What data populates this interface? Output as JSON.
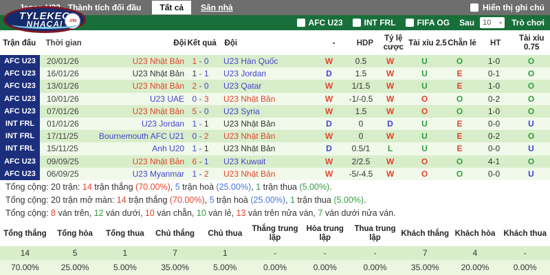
{
  "topbar": {
    "title": "Japan U23 - Thành tích đối đầu",
    "tab_all": "Tất cả",
    "tab_home": "Sân nhà",
    "note_label": "Hiển thị ghi chú"
  },
  "logo": {
    "line1": "TYLEKEO",
    "line2": "NHACAI",
    "vin": ".VIN"
  },
  "filterbar": {
    "checkboxes": [
      "AFC U23",
      "INT FRL",
      "FIFA OG"
    ],
    "after_label": "Sau",
    "select_value": "10",
    "select_chevron": "▾",
    "games_label": "Trò chơi"
  },
  "table": {
    "headers": [
      "Trận đấu",
      "Thời gian",
      "Đội",
      "Kết quả",
      "Đội",
      "-",
      "HDP",
      "Tỷ lệ cược",
      "Tài xỉu 2.5",
      "Chẵn lẻ",
      "HT",
      "Tài xỉu 0.75"
    ],
    "rows": [
      {
        "league": "AFC U23",
        "date": "20/01/26",
        "home": {
          "name": "U23 Nhật Bản",
          "c": "red"
        },
        "score": {
          "h": "1",
          "hc": "red",
          "a": "0",
          "ac": "blue"
        },
        "away": {
          "name": "U23 Hàn Quốc",
          "c": "blue"
        },
        "result": {
          "t": "W",
          "c": "red"
        },
        "hdp": "0.5",
        "odds": {
          "t": "W",
          "c": "red"
        },
        "ou25": {
          "t": "U",
          "c": "green"
        },
        "oddeven": {
          "t": "O",
          "c": "green"
        },
        "ht": "1-0",
        "ou075": {
          "t": "O",
          "c": "green"
        }
      },
      {
        "league": "AFC U23",
        "date": "16/01/26",
        "home": {
          "name": "U23 Nhật Bản",
          "c": "black"
        },
        "score": {
          "h": "1",
          "hc": "black",
          "a": "1",
          "ac": "blue"
        },
        "away": {
          "name": "U23 Jordan",
          "c": "blue"
        },
        "result": {
          "t": "D",
          "c": "blue"
        },
        "hdp": "1.5",
        "odds": {
          "t": "W",
          "c": "red"
        },
        "ou25": {
          "t": "U",
          "c": "green"
        },
        "oddeven": {
          "t": "E",
          "c": "red"
        },
        "ht": "0-1",
        "ou075": {
          "t": "O",
          "c": "green"
        }
      },
      {
        "league": "AFC U23",
        "date": "13/01/26",
        "home": {
          "name": "U23 Nhật Bản",
          "c": "red"
        },
        "score": {
          "h": "2",
          "hc": "red",
          "a": "0",
          "ac": "blue"
        },
        "away": {
          "name": "U23 Qatar",
          "c": "blue"
        },
        "result": {
          "t": "W",
          "c": "red"
        },
        "hdp": "1/1.5",
        "odds": {
          "t": "W",
          "c": "red"
        },
        "ou25": {
          "t": "U",
          "c": "green"
        },
        "oddeven": {
          "t": "E",
          "c": "red"
        },
        "ht": "1-0",
        "ou075": {
          "t": "O",
          "c": "green"
        }
      },
      {
        "league": "AFC U23",
        "date": "10/01/26",
        "home": {
          "name": "U23 UAE",
          "c": "blue"
        },
        "score": {
          "h": "0",
          "hc": "blue",
          "a": "3",
          "ac": "red"
        },
        "away": {
          "name": "U23 Nhật Bản",
          "c": "red"
        },
        "result": {
          "t": "W",
          "c": "red"
        },
        "hdp": "-1/-0.5",
        "odds": {
          "t": "W",
          "c": "red"
        },
        "ou25": {
          "t": "O",
          "c": "red"
        },
        "oddeven": {
          "t": "O",
          "c": "green"
        },
        "ht": "0-2",
        "ou075": {
          "t": "O",
          "c": "green"
        }
      },
      {
        "league": "AFC U23",
        "date": "07/01/26",
        "home": {
          "name": "U23 Nhật Bản",
          "c": "red"
        },
        "score": {
          "h": "5",
          "hc": "red",
          "a": "0",
          "ac": "blue"
        },
        "away": {
          "name": "U23 Syria",
          "c": "blue"
        },
        "result": {
          "t": "W",
          "c": "red"
        },
        "hdp": "1.5",
        "odds": {
          "t": "W",
          "c": "red"
        },
        "ou25": {
          "t": "O",
          "c": "red"
        },
        "oddeven": {
          "t": "O",
          "c": "green"
        },
        "ht": "1-0",
        "ou075": {
          "t": "O",
          "c": "green"
        }
      },
      {
        "league": "INT FRL",
        "date": "01/01/26",
        "home": {
          "name": "U23 Jordan",
          "c": "blue"
        },
        "score": {
          "h": "1",
          "hc": "blue",
          "a": "1",
          "ac": "black"
        },
        "away": {
          "name": "U23 Nhật Bản",
          "c": "black"
        },
        "result": {
          "t": "D",
          "c": "blue"
        },
        "hdp": "0",
        "odds": {
          "t": "D",
          "c": "blue"
        },
        "ou25": {
          "t": "U",
          "c": "green"
        },
        "oddeven": {
          "t": "E",
          "c": "red"
        },
        "ht": "0-0",
        "ou075": {
          "t": "U",
          "c": "blue"
        }
      },
      {
        "league": "INT FRL",
        "date": "17/11/25",
        "home": {
          "name": "Bournemouth AFC U21",
          "c": "blue"
        },
        "score": {
          "h": "0",
          "hc": "blue",
          "a": "2",
          "ac": "red"
        },
        "away": {
          "name": "U23 Nhật Bản",
          "c": "red"
        },
        "result": {
          "t": "W",
          "c": "red"
        },
        "hdp": "0",
        "odds": {
          "t": "W",
          "c": "red"
        },
        "ou25": {
          "t": "U",
          "c": "green"
        },
        "oddeven": {
          "t": "E",
          "c": "red"
        },
        "ht": "0-2",
        "ou075": {
          "t": "O",
          "c": "green"
        }
      },
      {
        "league": "INT FRL",
        "date": "15/11/25",
        "home": {
          "name": "Anh U20",
          "c": "blue"
        },
        "score": {
          "h": "1",
          "hc": "blue",
          "a": "1",
          "ac": "black"
        },
        "away": {
          "name": "U23 Nhật Bản",
          "c": "black"
        },
        "result": {
          "t": "D",
          "c": "blue"
        },
        "hdp": "0.5/1",
        "odds": {
          "t": "L",
          "c": "green"
        },
        "ou25": {
          "t": "U",
          "c": "green"
        },
        "oddeven": {
          "t": "E",
          "c": "red"
        },
        "ht": "0-0",
        "ou075": {
          "t": "U",
          "c": "blue"
        }
      },
      {
        "league": "AFC U23",
        "date": "09/09/25",
        "home": {
          "name": "U23 Nhật Bản",
          "c": "red"
        },
        "score": {
          "h": "6",
          "hc": "red",
          "a": "1",
          "ac": "blue"
        },
        "away": {
          "name": "U23 Kuwait",
          "c": "blue"
        },
        "result": {
          "t": "W",
          "c": "red"
        },
        "hdp": "2/2.5",
        "odds": {
          "t": "W",
          "c": "red"
        },
        "ou25": {
          "t": "O",
          "c": "red"
        },
        "oddeven": {
          "t": "O",
          "c": "green"
        },
        "ht": "4-1",
        "ou075": {
          "t": "O",
          "c": "green"
        }
      },
      {
        "league": "AFC U23",
        "date": "06/09/25",
        "home": {
          "name": "U23 Myanmar",
          "c": "blue"
        },
        "score": {
          "h": "1",
          "hc": "blue",
          "a": "2",
          "ac": "red"
        },
        "away": {
          "name": "U23 Nhật Bản",
          "c": "red"
        },
        "result": {
          "t": "W",
          "c": "red"
        },
        "hdp": "-5/-4.5",
        "odds": {
          "t": "W",
          "c": "red"
        },
        "ou25": {
          "t": "O",
          "c": "red"
        },
        "oddeven": {
          "t": "O",
          "c": "green"
        },
        "ht": "0-0",
        "ou075": {
          "t": "U",
          "c": "blue"
        }
      }
    ]
  },
  "summary": {
    "lines": [
      [
        {
          "t": "Tổng cộng: 20 trận: ",
          "c": "black"
        },
        {
          "t": "14",
          "c": "red"
        },
        {
          "t": " trận thắng ",
          "c": "black"
        },
        {
          "t": "(70.00%)",
          "c": "red"
        },
        {
          "t": ", ",
          "c": "black"
        },
        {
          "t": "5",
          "c": "sblue"
        },
        {
          "t": " trận hoà ",
          "c": "black"
        },
        {
          "t": "(25.00%)",
          "c": "sblue"
        },
        {
          "t": ", ",
          "c": "black"
        },
        {
          "t": "1",
          "c": "green"
        },
        {
          "t": " trận thua ",
          "c": "black"
        },
        {
          "t": "(5.00%)",
          "c": "green"
        },
        {
          "t": ".",
          "c": "black"
        }
      ],
      [
        {
          "t": "Tổng cộng: 20 trận mở màn: ",
          "c": "black"
        },
        {
          "t": "14",
          "c": "red"
        },
        {
          "t": " trận thắng ",
          "c": "black"
        },
        {
          "t": "(70.00%)",
          "c": "red"
        },
        {
          "t": ", ",
          "c": "black"
        },
        {
          "t": "5",
          "c": "sblue"
        },
        {
          "t": " trận hoà ",
          "c": "black"
        },
        {
          "t": "(25.00%)",
          "c": "sblue"
        },
        {
          "t": ", ",
          "c": "black"
        },
        {
          "t": "1",
          "c": "green"
        },
        {
          "t": " trận thua ",
          "c": "black"
        },
        {
          "t": "(5.00%)",
          "c": "green"
        },
        {
          "t": ".",
          "c": "black"
        }
      ],
      [
        {
          "t": "Tổng cộng: ",
          "c": "black"
        },
        {
          "t": "8",
          "c": "red"
        },
        {
          "t": " ván trên, ",
          "c": "black"
        },
        {
          "t": "12",
          "c": "green"
        },
        {
          "t": " ván dưới, ",
          "c": "black"
        },
        {
          "t": "10",
          "c": "red"
        },
        {
          "t": " ván chẵn, ",
          "c": "black"
        },
        {
          "t": "10",
          "c": "green"
        },
        {
          "t": " ván lẻ, ",
          "c": "black"
        },
        {
          "t": "13",
          "c": "red"
        },
        {
          "t": " ván trên nửa ván, ",
          "c": "black"
        },
        {
          "t": "7",
          "c": "green"
        },
        {
          "t": " ván dưới nửa ván.",
          "c": "black"
        }
      ]
    ]
  },
  "stats": {
    "columns": [
      {
        "label": "Tổng thắng",
        "value": "14",
        "percent": "70.00%"
      },
      {
        "label": "Tổng hòa",
        "value": "5",
        "percent": "25.00%"
      },
      {
        "label": "Tổng thua",
        "value": "1",
        "percent": "5.00%"
      },
      {
        "label": "Chủ thắng",
        "value": "7",
        "percent": "35.00%"
      },
      {
        "label": "Chủ thua",
        "value": "1",
        "percent": "5.00%"
      },
      {
        "label": "Thắng trung lập",
        "value": "-",
        "percent": "0.00%"
      },
      {
        "label": "Hòa trung lập",
        "value": "-",
        "percent": "0.00%"
      },
      {
        "label": "Thua trung lập",
        "value": "-",
        "percent": "0.00%"
      },
      {
        "label": "Khách thắng",
        "value": "7",
        "percent": "35.00%"
      },
      {
        "label": "Khách hòa",
        "value": "4",
        "percent": "20.00%"
      },
      {
        "label": "Khách thua",
        "value": "-",
        "percent": "0.00%"
      }
    ]
  },
  "colors": {
    "accent_red": "#e2432e",
    "accent_blue": "#4343cf",
    "accent_green": "#2f9e3f",
    "summary_blue": "#4576d8",
    "navy": "#1c2f7d",
    "bar_green": "#186f3a",
    "topbar_gray": "#6e6e6e",
    "row_odd": "#d8eeca",
    "row_even": "#f0f9ea"
  }
}
